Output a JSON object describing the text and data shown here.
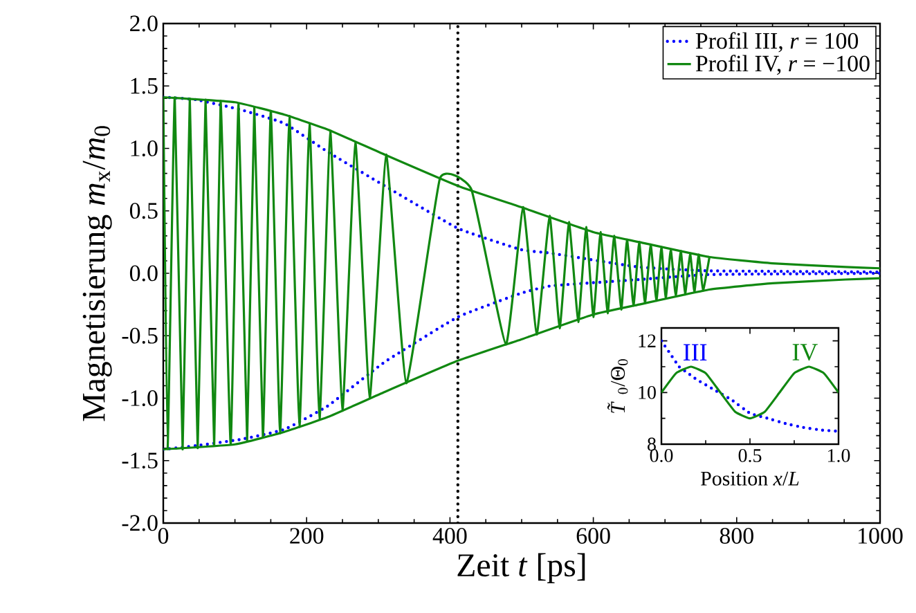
{
  "chart_data": [
    {
      "type": "line",
      "xlabel": "Zeit *t* [ps]",
      "ylabel": "Magnetisierung *m*$_{x}$/*m*$_{0}$",
      "xlim": [
        0,
        1000
      ],
      "ylim": [
        -2,
        2
      ],
      "xticks": [
        0,
        200,
        400,
        600,
        800,
        1000
      ],
      "yticks": [
        {
          "value": 2,
          "label": "2.0"
        },
        {
          "value": 1.5,
          "label": "1.5"
        },
        {
          "value": 1,
          "label": "1.0"
        },
        {
          "value": 0.5,
          "label": "0.5"
        },
        {
          "value": 0,
          "label": "0.0"
        },
        {
          "value": -0.5,
          "label": "-0.5"
        },
        {
          "value": -1,
          "label": "-1.0"
        },
        {
          "value": -1.5,
          "label": "-1.5"
        },
        {
          "value": -2,
          "label": "-2.0"
        }
      ],
      "legend": "top right",
      "ref_lines": [
        {
          "axis": "x",
          "value": 411,
          "color": "#000000",
          "line_style": "dotted"
        }
      ],
      "series": [
        {
          "name": "Profil III, *r* = 100",
          "color": "#0000ff",
          "line_style": "dotted",
          "x": [
            0,
            46,
            108,
            169,
            230,
            309,
            411,
            499,
            542,
            664,
            762,
            1000
          ],
          "values": [
            1.41,
            1.39,
            1.31,
            1.2,
            0.97,
            0.7,
            0.36,
            0.19,
            0.16,
            0.05,
            0.02,
            0.01
          ]
        },
        {
          "color": "#0000ff",
          "line_style": "dotted",
          "x": [
            0,
            46,
            108,
            169,
            230,
            309,
            411,
            499,
            542,
            664,
            762,
            1000
          ],
          "values": [
            -1.41,
            -1.38,
            -1.33,
            -1.25,
            -1.06,
            -0.71,
            -0.35,
            -0.16,
            -0.1,
            -0.05,
            -0.01,
            0.0
          ]
        },
        {
          "name": "Profil IV, *r* = −100",
          "color": "#118811",
          "line_style": "solid",
          "x": [
            0,
            6,
            16,
            27,
            37,
            48,
            59,
            71,
            80,
            94,
            105,
            117,
            127,
            139,
            150,
            163,
            176,
            190,
            204,
            218,
            233,
            250,
            268,
            288,
            311,
            339,
            386,
            430,
            478,
            502,
            521,
            539,
            553,
            566,
            579,
            590,
            600,
            610,
            620,
            629,
            639,
            647,
            656,
            664,
            672,
            680,
            688,
            695,
            701,
            708,
            715,
            722,
            728,
            735,
            741,
            747,
            753,
            762
          ],
          "values": [
            1.41,
            -1.41,
            1.41,
            -1.41,
            1.4,
            -1.4,
            1.39,
            -1.38,
            1.38,
            -1.37,
            1.36,
            -1.34,
            1.33,
            -1.31,
            1.3,
            -1.28,
            1.26,
            -1.23,
            1.2,
            -1.17,
            1.14,
            -1.1,
            1.05,
            -1.0,
            0.95,
            -0.88,
            0.76,
            0.67,
            -0.57,
            0.53,
            -0.49,
            0.46,
            -0.44,
            0.41,
            -0.39,
            0.37,
            -0.35,
            0.33,
            -0.32,
            0.3,
            -0.29,
            0.27,
            -0.26,
            0.25,
            -0.24,
            0.23,
            -0.22,
            0.21,
            -0.2,
            0.19,
            -0.18,
            0.18,
            -0.17,
            0.16,
            -0.15,
            0.15,
            -0.14,
            0.13
          ]
        },
        {
          "color": "#118811",
          "line_style": "solid",
          "x": [
            0,
            100,
            169,
            230,
            309,
            411,
            499,
            600,
            664,
            762,
            850,
            952,
            1000
          ],
          "values": [
            1.41,
            1.37,
            1.27,
            1.15,
            0.95,
            0.7,
            0.53,
            0.33,
            0.25,
            0.13,
            0.08,
            0.05,
            0.04
          ]
        },
        {
          "color": "#118811",
          "line_style": "solid",
          "x": [
            0,
            100,
            169,
            230,
            309,
            411,
            499,
            600,
            664,
            762,
            850,
            952,
            1000
          ],
          "values": [
            -1.41,
            -1.37,
            -1.27,
            -1.15,
            -0.95,
            -0.7,
            -0.53,
            -0.33,
            -0.25,
            -0.13,
            -0.08,
            -0.05,
            -0.04
          ]
        }
      ]
    },
    {
      "type": "line",
      "xlabel": "Position *x*/*L*",
      "ylabel": "*T̃*$_{0}$/Θ$_{0}$",
      "xlim": [
        0,
        1
      ],
      "ylim": [
        8,
        12.5
      ],
      "xticks": [
        {
          "value": 0,
          "label": "0.0"
        },
        {
          "value": 0.5,
          "label": "0.5"
        },
        {
          "value": 1,
          "label": "1.0"
        }
      ],
      "yticks": [
        8,
        10,
        12
      ],
      "series": [
        {
          "name": "III",
          "color": "#0000ff",
          "line_style": "dotted",
          "x": [
            0,
            0.05,
            0.1,
            0.15,
            0.2,
            0.3,
            0.4,
            0.5,
            0.6,
            0.7,
            0.8,
            0.9,
            1.0
          ],
          "values": [
            12.0,
            11.5,
            11.0,
            10.75,
            10.5,
            10.1,
            9.7,
            9.2,
            9.0,
            8.8,
            8.65,
            8.55,
            8.5
          ]
        },
        {
          "name": "IV",
          "color": "#118811",
          "line_style": "solid",
          "x": [
            0,
            0.083,
            0.167,
            0.25,
            0.333,
            0.417,
            0.5,
            0.583,
            0.667,
            0.75,
            0.833,
            0.917,
            1.0
          ],
          "values": [
            10.0,
            10.75,
            11.0,
            10.75,
            10.0,
            9.25,
            9.0,
            9.25,
            10.0,
            10.75,
            11.0,
            10.75,
            10.0
          ]
        }
      ]
    }
  ]
}
